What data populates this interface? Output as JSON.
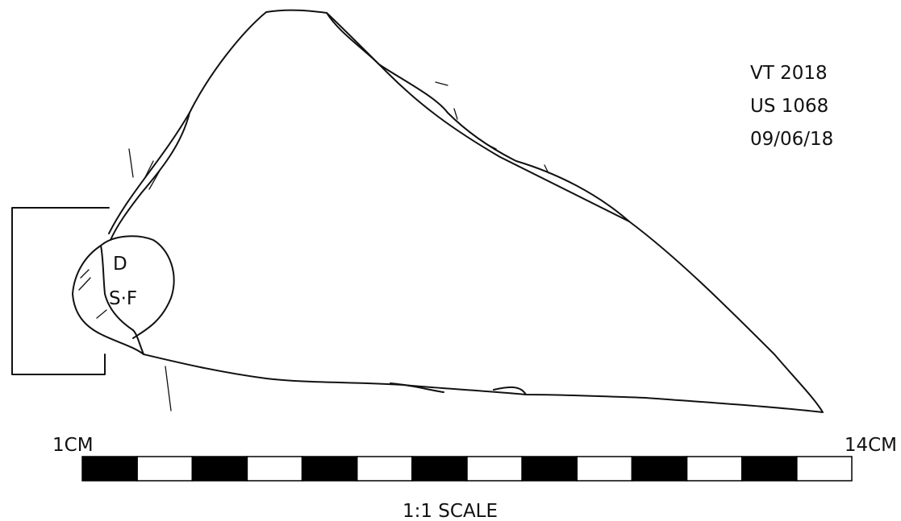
{
  "label": {
    "lines": [
      "VT 2018",
      "US 1068",
      "09/06/18"
    ]
  },
  "stamp": {
    "top": "D",
    "bottom": "S·F"
  },
  "scale": {
    "start": "1CM",
    "end": "14CM",
    "caption": "1:1 SCALE"
  }
}
